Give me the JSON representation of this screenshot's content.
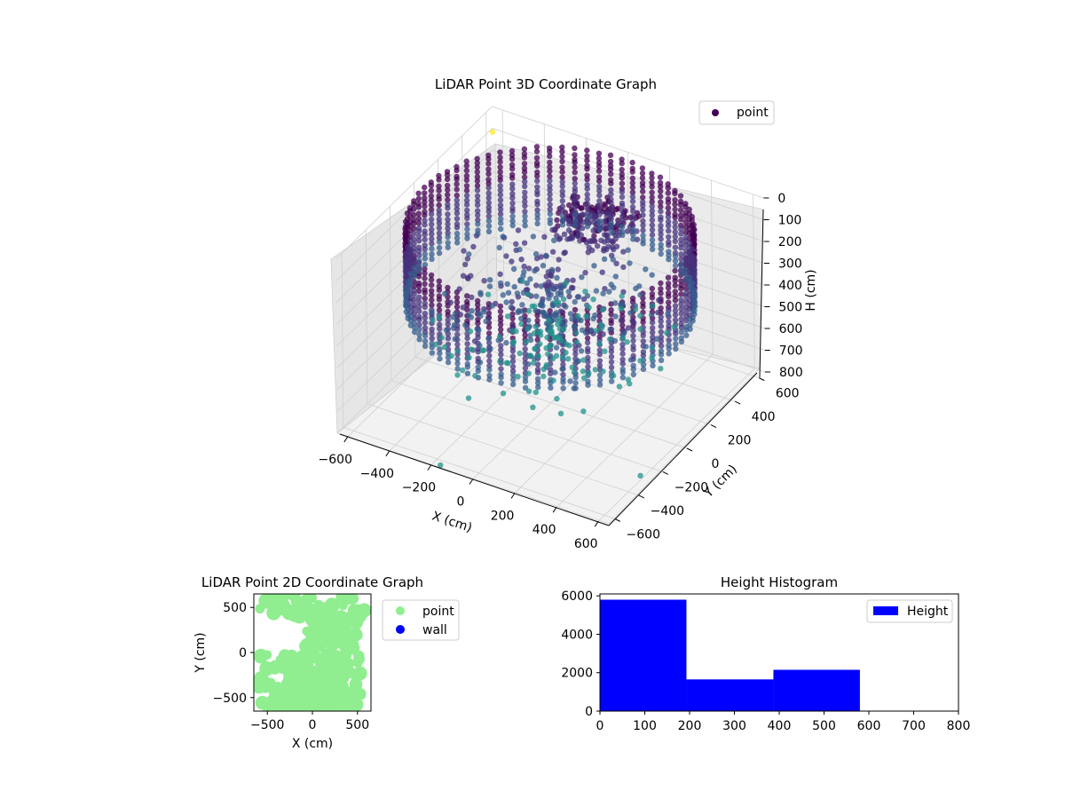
{
  "colors": {
    "viridis_dark": "#440154",
    "viridis_purple": "#46337e",
    "viridis_blue": "#365c8d",
    "viridis_teal": "#21918c",
    "viridis_green": "#5ec962",
    "viridis_yellow": "#fde725",
    "scatter2d_point": "#90ee90",
    "scatter2d_wall": "#0000ff",
    "hist_bar": "#0000ff",
    "pane": "#f2f2f2",
    "grid": "#d0d0d0"
  },
  "chart_data": [
    {
      "type": "scatter",
      "projection": "3d",
      "title": "LiDAR Point 3D Coordinate Graph",
      "xlabel": "X (cm)",
      "ylabel": "Y (cm)",
      "zlabel": "H (cm)",
      "xlim": [
        -650,
        650
      ],
      "ylim": [
        -650,
        650
      ],
      "zlim": [
        800,
        0
      ],
      "xticks": [
        "−600",
        "−400",
        "−200",
        "0",
        "200",
        "400",
        "600"
      ],
      "yticks": [
        "−600",
        "−400",
        "−200",
        "0",
        "200",
        "400",
        "600"
      ],
      "zticks": [
        "0",
        "100",
        "200",
        "300",
        "400",
        "500",
        "600",
        "700",
        "800"
      ],
      "legend": {
        "position": "top-right",
        "entries": [
          "point"
        ]
      },
      "colormap": "viridis",
      "grid": true,
      "description_of_series": {
        "name": "point",
        "shape": "cylindrical wall ring of radius ~600 cm spanning H ~ 0–350 cm, plus interior clutter points",
        "outliers": [
          [
            -620,
            600,
            80
          ],
          [
            -150,
            -660,
            780
          ],
          [
            600,
            -300,
            780
          ]
        ]
      }
    },
    {
      "type": "scatter",
      "title": "LiDAR Point 2D Coordinate Graph",
      "xlabel": "X (cm)",
      "ylabel": "Y (cm)",
      "xlim": [
        -650,
        650
      ],
      "ylim": [
        -650,
        650
      ],
      "xticks": [
        "−500",
        "0",
        "500"
      ],
      "yticks": [
        "−500",
        "0",
        "500"
      ],
      "legend": {
        "position": "outside-right",
        "entries": [
          "point",
          "wall"
        ]
      },
      "series": [
        {
          "name": "point",
          "color": "#90ee90"
        },
        {
          "name": "wall",
          "color": "#0000ff"
        }
      ]
    },
    {
      "type": "bar",
      "title": "Height Histogram",
      "xlabel": "",
      "ylabel": "",
      "xlim": [
        0,
        800
      ],
      "ylim": [
        0,
        6100
      ],
      "xticks": [
        "0",
        "100",
        "200",
        "300",
        "400",
        "500",
        "600",
        "700",
        "800"
      ],
      "yticks": [
        "0",
        "2000",
        "4000",
        "6000"
      ],
      "legend": {
        "position": "top-right",
        "entries": [
          "Height"
        ]
      },
      "bins": [
        {
          "start": 0,
          "end": 193,
          "count": 5800
        },
        {
          "start": 193,
          "end": 387,
          "count": 1650
        },
        {
          "start": 387,
          "end": 580,
          "count": 2150
        }
      ],
      "series": [
        {
          "name": "Height"
        }
      ]
    }
  ]
}
